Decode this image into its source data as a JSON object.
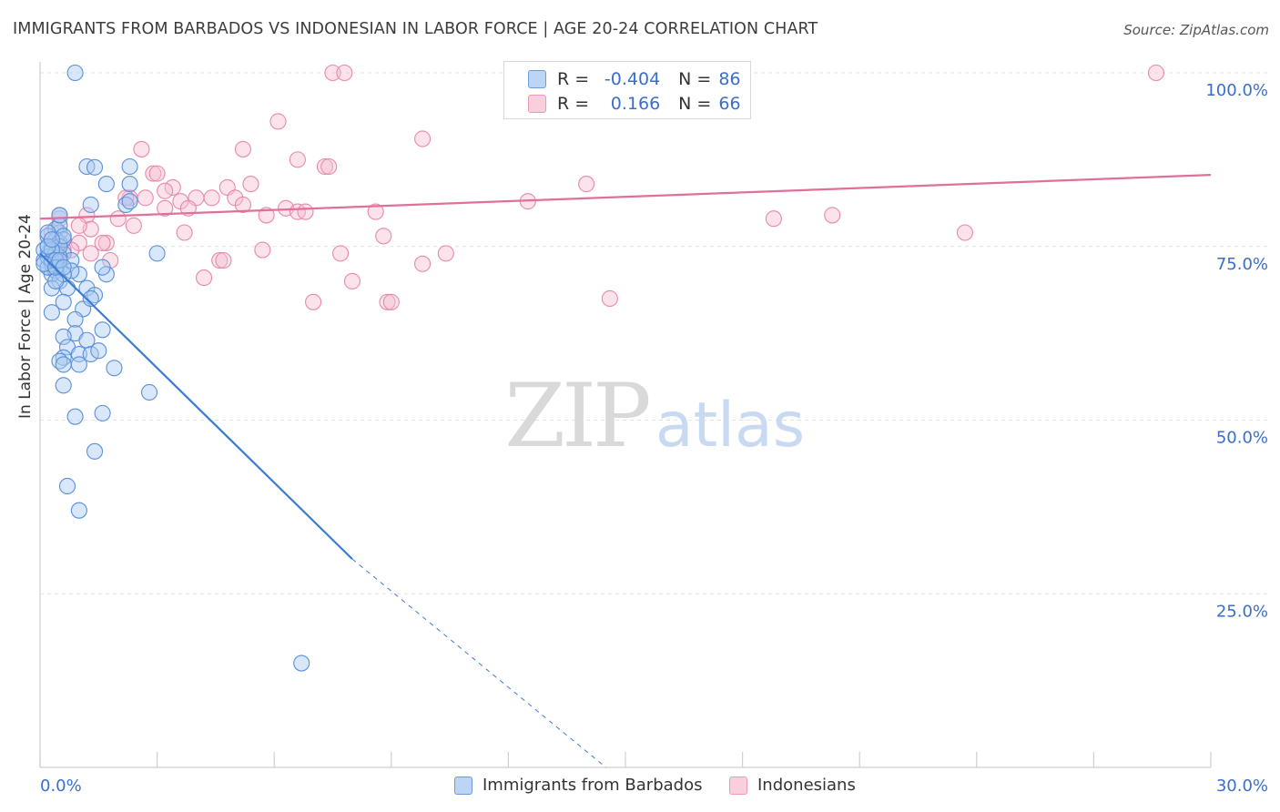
{
  "title": "IMMIGRANTS FROM BARBADOS VS INDONESIAN IN LABOR FORCE | AGE 20-24 CORRELATION CHART",
  "source": "Source: ZipAtlas.com",
  "watermark": {
    "zip": "ZIP",
    "atlas": "atlas"
  },
  "legend": {
    "r_label": "R =",
    "n_label": "N =",
    "rows": [
      {
        "r": "-0.404",
        "n": "86"
      },
      {
        "r": " 0.166",
        "n": "66"
      }
    ]
  },
  "colors": {
    "blue_fill": "#a9c9f2",
    "blue_stroke": "#5b8fd8",
    "blue_line": "#3a7bd5",
    "pink_fill": "#f7bfd2",
    "pink_stroke": "#e889aa",
    "pink_line": "#e0709a",
    "axis_label_blue": "#3a6fc9"
  },
  "chart_data": {
    "type": "scatter",
    "title": "IMMIGRANTS FROM BARBADOS VS INDONESIAN IN LABOR FORCE | AGE 20-24 CORRELATION CHART",
    "xlabel": "",
    "ylabel": "In Labor Force | Age 20-24",
    "xlim": [
      0,
      30
    ],
    "ylim": [
      0,
      100
    ],
    "x_ticks": [
      "0.0%",
      "30.0%"
    ],
    "y_ticks": [
      "100.0%",
      "75.0%",
      "50.0%",
      "25.0%"
    ],
    "y_tick_values": [
      100,
      75,
      50,
      25
    ],
    "grid": true,
    "legend_position": "top-center",
    "series": [
      {
        "name": "Immigrants from Barbados",
        "color": "#a9c9f2",
        "r": -0.404,
        "n": 86,
        "trend": {
          "x0": 0.0,
          "y0": 74.0,
          "x1": 8.0,
          "y1": 30.0,
          "dashed_to_x": 14.5,
          "dashed_to_y": 0.0
        },
        "points": [
          [
            0.9,
            100
          ],
          [
            1.7,
            84
          ],
          [
            2.3,
            84
          ],
          [
            1.2,
            86.5
          ],
          [
            2.3,
            86.5
          ],
          [
            1.4,
            86.4
          ],
          [
            0.5,
            79.5
          ],
          [
            0.5,
            77
          ],
          [
            0.4,
            77.5
          ],
          [
            0.2,
            76.5
          ],
          [
            0.3,
            75
          ],
          [
            0.2,
            74
          ],
          [
            0.1,
            73
          ],
          [
            0.2,
            72
          ],
          [
            0.3,
            71
          ],
          [
            0.4,
            73
          ],
          [
            0.6,
            74
          ],
          [
            0.8,
            73
          ],
          [
            0.5,
            72
          ],
          [
            0.4,
            71.5
          ],
          [
            1.0,
            71
          ],
          [
            1.7,
            71
          ],
          [
            0.5,
            70
          ],
          [
            0.3,
            69
          ],
          [
            0.7,
            69
          ],
          [
            1.2,
            69
          ],
          [
            1.4,
            68
          ],
          [
            0.6,
            67
          ],
          [
            1.1,
            66
          ],
          [
            0.3,
            65.5
          ],
          [
            0.9,
            64.5
          ],
          [
            1.6,
            63
          ],
          [
            0.9,
            62.5
          ],
          [
            1.2,
            61.5
          ],
          [
            0.6,
            62
          ],
          [
            0.7,
            60.5
          ],
          [
            1.0,
            59.5
          ],
          [
            1.3,
            59.5
          ],
          [
            1.5,
            60
          ],
          [
            0.6,
            59
          ],
          [
            0.5,
            58.5
          ],
          [
            0.6,
            58
          ],
          [
            1.0,
            58
          ],
          [
            1.9,
            57.5
          ],
          [
            0.6,
            55
          ],
          [
            2.8,
            54
          ],
          [
            1.6,
            51
          ],
          [
            0.9,
            50.5
          ],
          [
            1.4,
            45.5
          ],
          [
            0.7,
            40.5
          ],
          [
            1.0,
            37
          ],
          [
            6.7,
            15
          ],
          [
            3.0,
            74
          ],
          [
            2.2,
            81
          ],
          [
            2.3,
            81.5
          ],
          [
            0.5,
            78
          ],
          [
            0.4,
            76
          ],
          [
            0.2,
            75
          ],
          [
            0.3,
            74.5
          ],
          [
            0.8,
            71.5
          ],
          [
            1.3,
            67.5
          ],
          [
            0.5,
            73.5
          ],
          [
            0.3,
            72.5
          ],
          [
            0.2,
            72
          ],
          [
            0.6,
            71
          ],
          [
            0.4,
            70
          ],
          [
            0.5,
            75.5
          ],
          [
            0.6,
            76
          ],
          [
            0.2,
            77
          ],
          [
            0.1,
            74.5
          ],
          [
            0.2,
            73.5
          ],
          [
            0.3,
            73
          ],
          [
            0.1,
            72.5
          ],
          [
            0.4,
            74
          ],
          [
            0.5,
            75
          ],
          [
            0.6,
            76.5
          ],
          [
            0.3,
            74.5
          ],
          [
            0.4,
            73
          ],
          [
            1.3,
            81
          ],
          [
            0.5,
            79.5
          ],
          [
            1.6,
            72
          ],
          [
            0.2,
            75
          ],
          [
            0.3,
            76
          ],
          [
            0.4,
            72
          ],
          [
            0.5,
            73
          ],
          [
            0.6,
            72
          ]
        ]
      },
      {
        "name": "Indonesians",
        "color": "#f7bfd2",
        "r": 0.166,
        "n": 66,
        "trend": {
          "x0": 0.0,
          "y0": 79.0,
          "x1": 30.0,
          "y1": 85.3
        },
        "points": [
          [
            7.5,
            100
          ],
          [
            7.8,
            100
          ],
          [
            28.6,
            100
          ],
          [
            6.1,
            93
          ],
          [
            9.8,
            90.5
          ],
          [
            2.6,
            89
          ],
          [
            5.2,
            89
          ],
          [
            6.6,
            87.5
          ],
          [
            7.3,
            86.5
          ],
          [
            7.4,
            86.5
          ],
          [
            2.9,
            85.5
          ],
          [
            3.0,
            85.5
          ],
          [
            3.4,
            83.5
          ],
          [
            4.8,
            83.5
          ],
          [
            5.4,
            84
          ],
          [
            14.0,
            84
          ],
          [
            3.2,
            83
          ],
          [
            2.3,
            82
          ],
          [
            2.2,
            82
          ],
          [
            2.7,
            82
          ],
          [
            3.6,
            81.5
          ],
          [
            4.0,
            82
          ],
          [
            4.4,
            82
          ],
          [
            5.0,
            82
          ],
          [
            12.5,
            81.5
          ],
          [
            5.2,
            81
          ],
          [
            3.2,
            80.5
          ],
          [
            3.8,
            80.5
          ],
          [
            6.3,
            80.5
          ],
          [
            6.6,
            80
          ],
          [
            6.8,
            80
          ],
          [
            8.6,
            80
          ],
          [
            1.2,
            79.5
          ],
          [
            2.0,
            79
          ],
          [
            5.8,
            79.5
          ],
          [
            18.8,
            79
          ],
          [
            20.3,
            79.5
          ],
          [
            2.4,
            78
          ],
          [
            1.3,
            77.5
          ],
          [
            3.7,
            77
          ],
          [
            8.8,
            76.5
          ],
          [
            23.7,
            77
          ],
          [
            1.7,
            75.5
          ],
          [
            0.5,
            75.5
          ],
          [
            1.0,
            75.5
          ],
          [
            1.6,
            75.5
          ],
          [
            0.8,
            74.5
          ],
          [
            0.6,
            74.5
          ],
          [
            1.3,
            74
          ],
          [
            5.7,
            74.5
          ],
          [
            7.7,
            74
          ],
          [
            10.4,
            74
          ],
          [
            1.8,
            73
          ],
          [
            4.6,
            73
          ],
          [
            4.7,
            73
          ],
          [
            9.8,
            72.5
          ],
          [
            4.2,
            70.5
          ],
          [
            8.0,
            70
          ],
          [
            7.0,
            67
          ],
          [
            8.9,
            67
          ],
          [
            9.0,
            67
          ],
          [
            14.6,
            67.5
          ],
          [
            0.3,
            77
          ],
          [
            0.5,
            79
          ],
          [
            1.0,
            78
          ],
          [
            0.6,
            76
          ]
        ]
      }
    ]
  },
  "bottom_legend": [
    "Immigrants from Barbados",
    "Indonesians"
  ]
}
